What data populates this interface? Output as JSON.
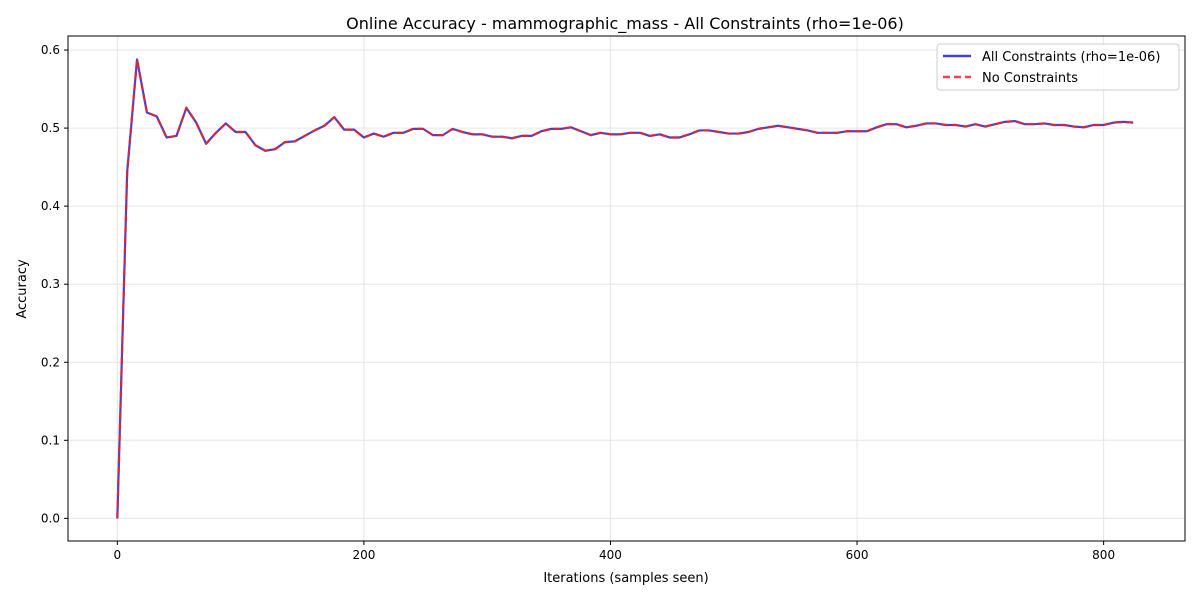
{
  "chart_data": {
    "type": "line",
    "title": "Online Accuracy - mammographic_mass - All Constraints (rho=1e-06)",
    "xlabel": "Iterations (samples seen)",
    "ylabel": "Accuracy",
    "xlim": [
      -40,
      866
    ],
    "ylim": [
      -0.029,
      0.618
    ],
    "xticks": [
      0,
      200,
      400,
      600,
      800
    ],
    "yticks": [
      0.0,
      0.1,
      0.2,
      0.3,
      0.4,
      0.5,
      0.6
    ],
    "xtick_labels": [
      "0",
      "200",
      "400",
      "600",
      "800"
    ],
    "ytick_labels": [
      "0.0",
      "0.1",
      "0.2",
      "0.3",
      "0.4",
      "0.5",
      "0.6"
    ],
    "grid": true,
    "legend_position": "top-right",
    "x": [
      0,
      8,
      16,
      24,
      32,
      40,
      48,
      56,
      64,
      72,
      80,
      88,
      96,
      104,
      112,
      120,
      128,
      136,
      144,
      152,
      160,
      168,
      176,
      184,
      192,
      200,
      208,
      216,
      224,
      232,
      240,
      248,
      256,
      264,
      272,
      280,
      288,
      296,
      304,
      312,
      320,
      328,
      336,
      344,
      352,
      360,
      368,
      376,
      384,
      392,
      400,
      408,
      416,
      424,
      432,
      440,
      448,
      456,
      464,
      472,
      480,
      488,
      496,
      504,
      512,
      520,
      528,
      536,
      544,
      552,
      560,
      568,
      576,
      584,
      592,
      600,
      608,
      616,
      624,
      632,
      640,
      648,
      656,
      664,
      672,
      680,
      688,
      696,
      704,
      712,
      720,
      728,
      736,
      744,
      752,
      760,
      768,
      776,
      784,
      792,
      800,
      808,
      816,
      824
    ],
    "series": [
      {
        "name": "All Constraints (rho=1e-06)",
        "color": "#2020dd",
        "style": "solid",
        "values": [
          0.0,
          0.444,
          0.588,
          0.52,
          0.515,
          0.488,
          0.49,
          0.526,
          0.507,
          0.48,
          0.494,
          0.506,
          0.495,
          0.495,
          0.478,
          0.471,
          0.473,
          0.482,
          0.483,
          0.49,
          0.497,
          0.503,
          0.514,
          0.498,
          0.498,
          0.488,
          0.493,
          0.489,
          0.494,
          0.494,
          0.499,
          0.499,
          0.491,
          0.491,
          0.499,
          0.495,
          0.492,
          0.492,
          0.489,
          0.489,
          0.487,
          0.49,
          0.49,
          0.496,
          0.499,
          0.499,
          0.501,
          0.496,
          0.491,
          0.494,
          0.492,
          0.492,
          0.494,
          0.494,
          0.49,
          0.492,
          0.488,
          0.488,
          0.492,
          0.497,
          0.497,
          0.495,
          0.493,
          0.493,
          0.495,
          0.499,
          0.501,
          0.503,
          0.501,
          0.499,
          0.497,
          0.494,
          0.494,
          0.494,
          0.496,
          0.496,
          0.496,
          0.501,
          0.505,
          0.505,
          0.501,
          0.503,
          0.506,
          0.506,
          0.504,
          0.504,
          0.502,
          0.505,
          0.502,
          0.505,
          0.508,
          0.509,
          0.505,
          0.505,
          0.506,
          0.504,
          0.504,
          0.502,
          0.501,
          0.504,
          0.504,
          0.507,
          0.508,
          0.507
        ]
      },
      {
        "name": "No Constraints",
        "color": "#ee2222",
        "style": "dashed",
        "values": [
          0.0,
          0.444,
          0.588,
          0.52,
          0.515,
          0.488,
          0.49,
          0.526,
          0.507,
          0.48,
          0.494,
          0.506,
          0.495,
          0.495,
          0.478,
          0.471,
          0.473,
          0.482,
          0.483,
          0.49,
          0.497,
          0.503,
          0.514,
          0.498,
          0.498,
          0.488,
          0.493,
          0.489,
          0.494,
          0.494,
          0.499,
          0.499,
          0.491,
          0.491,
          0.499,
          0.495,
          0.492,
          0.492,
          0.489,
          0.489,
          0.487,
          0.49,
          0.49,
          0.496,
          0.499,
          0.499,
          0.501,
          0.496,
          0.491,
          0.494,
          0.492,
          0.492,
          0.494,
          0.494,
          0.49,
          0.492,
          0.488,
          0.488,
          0.492,
          0.497,
          0.497,
          0.495,
          0.493,
          0.493,
          0.495,
          0.499,
          0.501,
          0.503,
          0.501,
          0.499,
          0.497,
          0.494,
          0.494,
          0.494,
          0.496,
          0.496,
          0.496,
          0.501,
          0.505,
          0.505,
          0.501,
          0.503,
          0.506,
          0.506,
          0.504,
          0.504,
          0.502,
          0.505,
          0.502,
          0.505,
          0.508,
          0.509,
          0.505,
          0.505,
          0.506,
          0.504,
          0.504,
          0.502,
          0.501,
          0.504,
          0.504,
          0.507,
          0.508,
          0.507
        ]
      }
    ]
  }
}
